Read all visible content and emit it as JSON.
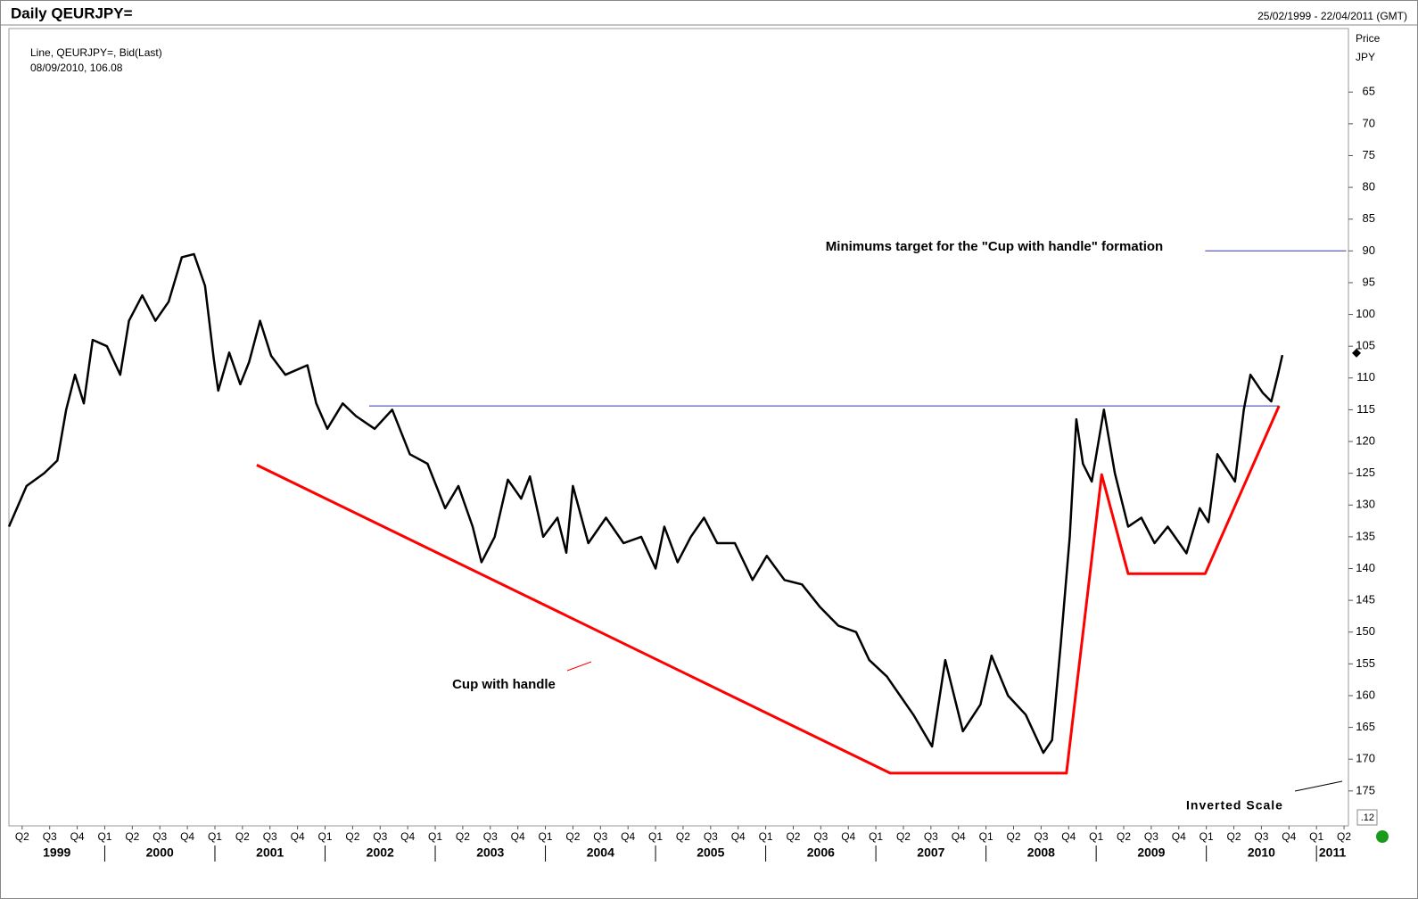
{
  "chart_data": {
    "type": "line",
    "title": "Daily QEURJPY=",
    "date_range": "25/02/1999 - 22/04/2011 (GMT)",
    "legend_text": "Line, QEURJPY=, Bid(Last)",
    "cursor": {
      "label": "08/09/2010, 106.08",
      "value": 106.08
    },
    "y_label": "Price",
    "y_unit": "JPY",
    "inverted": true,
    "inverted_label": "Inverted Scale",
    "corner_label": ".12",
    "xlim": [
      1999.13,
      2011.29
    ],
    "ylim": [
      55,
      180.5
    ],
    "yticks": [
      65,
      70,
      75,
      80,
      85,
      90,
      95,
      100,
      105,
      110,
      115,
      120,
      125,
      130,
      135,
      140,
      145,
      150,
      155,
      160,
      165,
      170,
      175
    ],
    "xticks": [
      {
        "value": 1999.25,
        "label": "Q2"
      },
      {
        "value": 1999.5,
        "label": "Q3"
      },
      {
        "value": 1999.75,
        "label": "Q4"
      },
      {
        "value": 2000,
        "label": "Q1"
      },
      {
        "value": 2000.25,
        "label": "Q2"
      },
      {
        "value": 2000.5,
        "label": "Q3"
      },
      {
        "value": 2000.75,
        "label": "Q4"
      },
      {
        "value": 2001,
        "label": "Q1"
      },
      {
        "value": 2001.25,
        "label": "Q2"
      },
      {
        "value": 2001.5,
        "label": "Q3"
      },
      {
        "value": 2001.75,
        "label": "Q4"
      },
      {
        "value": 2002,
        "label": "Q1"
      },
      {
        "value": 2002.25,
        "label": "Q2"
      },
      {
        "value": 2002.5,
        "label": "Q3"
      },
      {
        "value": 2002.75,
        "label": "Q4"
      },
      {
        "value": 2003,
        "label": "Q1"
      },
      {
        "value": 2003.25,
        "label": "Q2"
      },
      {
        "value": 2003.5,
        "label": "Q3"
      },
      {
        "value": 2003.75,
        "label": "Q4"
      },
      {
        "value": 2004,
        "label": "Q1"
      },
      {
        "value": 2004.25,
        "label": "Q2"
      },
      {
        "value": 2004.5,
        "label": "Q3"
      },
      {
        "value": 2004.75,
        "label": "Q4"
      },
      {
        "value": 2005,
        "label": "Q1"
      },
      {
        "value": 2005.25,
        "label": "Q2"
      },
      {
        "value": 2005.5,
        "label": "Q3"
      },
      {
        "value": 2005.75,
        "label": "Q4"
      },
      {
        "value": 2006,
        "label": "Q1"
      },
      {
        "value": 2006.25,
        "label": "Q2"
      },
      {
        "value": 2006.5,
        "label": "Q3"
      },
      {
        "value": 2006.75,
        "label": "Q4"
      },
      {
        "value": 2007,
        "label": "Q1"
      },
      {
        "value": 2007.25,
        "label": "Q2"
      },
      {
        "value": 2007.5,
        "label": "Q3"
      },
      {
        "value": 2007.75,
        "label": "Q4"
      },
      {
        "value": 2008,
        "label": "Q1"
      },
      {
        "value": 2008.25,
        "label": "Q2"
      },
      {
        "value": 2008.5,
        "label": "Q3"
      },
      {
        "value": 2008.75,
        "label": "Q4"
      },
      {
        "value": 2009,
        "label": "Q1"
      },
      {
        "value": 2009.25,
        "label": "Q2"
      },
      {
        "value": 2009.5,
        "label": "Q3"
      },
      {
        "value": 2009.75,
        "label": "Q4"
      },
      {
        "value": 2010,
        "label": "Q1"
      },
      {
        "value": 2010.25,
        "label": "Q2"
      },
      {
        "value": 2010.5,
        "label": "Q3"
      },
      {
        "value": 2010.75,
        "label": "Q4"
      },
      {
        "value": 2011,
        "label": "Q1"
      },
      {
        "value": 2011.25,
        "label": "Q2"
      }
    ],
    "years": [
      1999,
      2000,
      2001,
      2002,
      2003,
      2004,
      2005,
      2006,
      2007,
      2008,
      2009,
      2010,
      2011
    ],
    "series": [
      {
        "name": "QEURJPY=",
        "color": "#000000",
        "x": [
          1999.13,
          1999.29,
          1999.45,
          1999.57,
          1999.65,
          1999.73,
          1999.81,
          1999.89,
          2000.02,
          2000.14,
          2000.22,
          2000.34,
          2000.46,
          2000.58,
          2000.7,
          2000.81,
          2000.91,
          2000.99,
          2001.03,
          2001.13,
          2001.23,
          2001.31,
          2001.41,
          2001.51,
          2001.64,
          2001.84,
          2001.92,
          2002.02,
          2002.16,
          2002.28,
          2002.45,
          2002.61,
          2002.77,
          2002.93,
          2003.09,
          2003.21,
          2003.34,
          2003.42,
          2003.54,
          2003.66,
          2003.78,
          2003.86,
          2003.98,
          2004.11,
          2004.19,
          2004.25,
          2004.39,
          2004.55,
          2004.71,
          2004.87,
          2005.0,
          2005.08,
          2005.2,
          2005.32,
          2005.44,
          2005.56,
          2005.72,
          2005.88,
          2006.01,
          2006.17,
          2006.33,
          2006.49,
          2006.66,
          2006.82,
          2006.94,
          2007.1,
          2007.22,
          2007.34,
          2007.51,
          2007.63,
          2007.79,
          2007.95,
          2008.05,
          2008.2,
          2008.36,
          2008.52,
          2008.6,
          2008.68,
          2008.76,
          2008.82,
          2008.88,
          2008.96,
          2009.07,
          2009.17,
          2009.29,
          2009.41,
          2009.53,
          2009.65,
          2009.82,
          2009.94,
          2010.02,
          2010.1,
          2010.26,
          2010.34,
          2010.4,
          2010.51,
          2010.59,
          2010.65,
          2010.69
        ],
        "values": [
          133.4,
          127,
          125,
          123,
          115,
          109.5,
          114,
          104,
          105,
          109.5,
          101,
          97,
          101,
          98,
          91,
          90.5,
          95.5,
          107,
          112,
          106,
          111,
          107.5,
          101,
          106.5,
          109.5,
          108,
          114,
          118,
          114,
          116,
          118,
          115,
          122,
          123.5,
          130.5,
          127,
          133.4,
          139,
          135,
          126,
          129,
          125.5,
          135,
          132,
          137.5,
          127,
          136,
          132,
          136,
          135,
          140,
          133.4,
          139,
          135,
          132,
          136,
          136,
          141.8,
          138,
          141.8,
          142.5,
          146,
          149,
          150,
          154.4,
          157,
          160,
          163,
          168,
          154.4,
          165.6,
          161.4,
          153.7,
          160,
          163,
          169,
          167,
          151.6,
          135,
          116.5,
          123.5,
          126.3,
          115,
          125,
          133.4,
          132,
          136,
          133.4,
          137.6,
          130.5,
          132.7,
          122,
          126.3,
          115,
          109.5,
          112.3,
          113.7,
          109.5,
          106.4
        ]
      }
    ],
    "lines": [
      {
        "color": "#ff0000",
        "x": [
          2001.38,
          2007.13,
          2008.73,
          2009.05,
          2009.29,
          2009.99,
          2010.66
        ],
        "values": [
          123.7,
          172.2,
          172.2,
          125.2,
          140.8,
          140.8,
          114.4
        ]
      },
      {
        "color": "#3333aa",
        "x": [
          2002.4,
          2010.66
        ],
        "values": [
          114.4,
          114.4
        ]
      },
      {
        "color": "#3333aa",
        "x": [
          2009.99,
          2011.27
        ],
        "values": [
          90,
          90
        ]
      }
    ],
    "annotations": [
      {
        "text": "Cup with handle",
        "color": "#ff0000"
      },
      {
        "text": "Minimums target for the \"Cup with handle\" formation",
        "color": "#000000"
      }
    ]
  }
}
